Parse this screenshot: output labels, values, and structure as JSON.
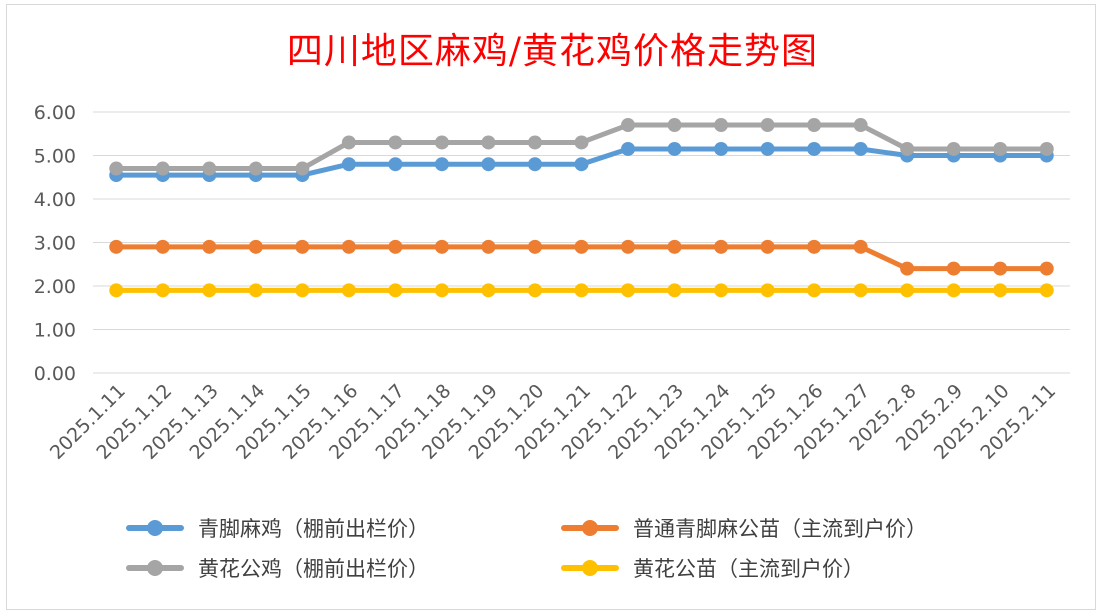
{
  "chart_data": {
    "type": "line",
    "title": "四川地区麻鸡/黄花鸡价格走势图",
    "xlabel": "",
    "ylabel": "",
    "ylim": [
      0,
      6
    ],
    "yticks": [
      "0.00",
      "1.00",
      "2.00",
      "3.00",
      "4.00",
      "5.00",
      "6.00"
    ],
    "grid": true,
    "legend_position": "bottom",
    "categories": [
      "2025.1.11",
      "2025.1.12",
      "2025.1.13",
      "2025.1.14",
      "2025.1.15",
      "2025.1.16",
      "2025.1.17",
      "2025.1.18",
      "2025.1.19",
      "2025.1.20",
      "2025.1.21",
      "2025.1.22",
      "2025.1.23",
      "2025.1.24",
      "2025.1.25",
      "2025.1.26",
      "2025.1.27",
      "2025.2.8",
      "2025.2.9",
      "2025.2.10",
      "2025.2.11"
    ],
    "series": [
      {
        "name": "青脚麻鸡（棚前出栏价）",
        "color": "#5b9bd5",
        "values": [
          4.55,
          4.55,
          4.55,
          4.55,
          4.55,
          4.8,
          4.8,
          4.8,
          4.8,
          4.8,
          4.8,
          5.15,
          5.15,
          5.15,
          5.15,
          5.15,
          5.15,
          5.0,
          5.0,
          5.0,
          5.0
        ]
      },
      {
        "name": "普通青脚麻公苗（主流到户价）",
        "color": "#ed7d31",
        "values": [
          2.9,
          2.9,
          2.9,
          2.9,
          2.9,
          2.9,
          2.9,
          2.9,
          2.9,
          2.9,
          2.9,
          2.9,
          2.9,
          2.9,
          2.9,
          2.9,
          2.9,
          2.4,
          2.4,
          2.4,
          2.4
        ]
      },
      {
        "name": "黄花公鸡（棚前出栏价）",
        "color": "#a5a5a5",
        "values": [
          4.7,
          4.7,
          4.7,
          4.7,
          4.7,
          5.3,
          5.3,
          5.3,
          5.3,
          5.3,
          5.3,
          5.7,
          5.7,
          5.7,
          5.7,
          5.7,
          5.7,
          5.15,
          5.15,
          5.15,
          5.15
        ]
      },
      {
        "name": "黄花公苗（主流到户价）",
        "color": "#ffc000",
        "values": [
          1.9,
          1.9,
          1.9,
          1.9,
          1.9,
          1.9,
          1.9,
          1.9,
          1.9,
          1.9,
          1.9,
          1.9,
          1.9,
          1.9,
          1.9,
          1.9,
          1.9,
          1.9,
          1.9,
          1.9,
          1.9
        ]
      }
    ]
  },
  "colors": {
    "title": "#ff0000",
    "grid": "#d9d9d9",
    "tick_text": "#595959",
    "legend_text": "#404040"
  }
}
